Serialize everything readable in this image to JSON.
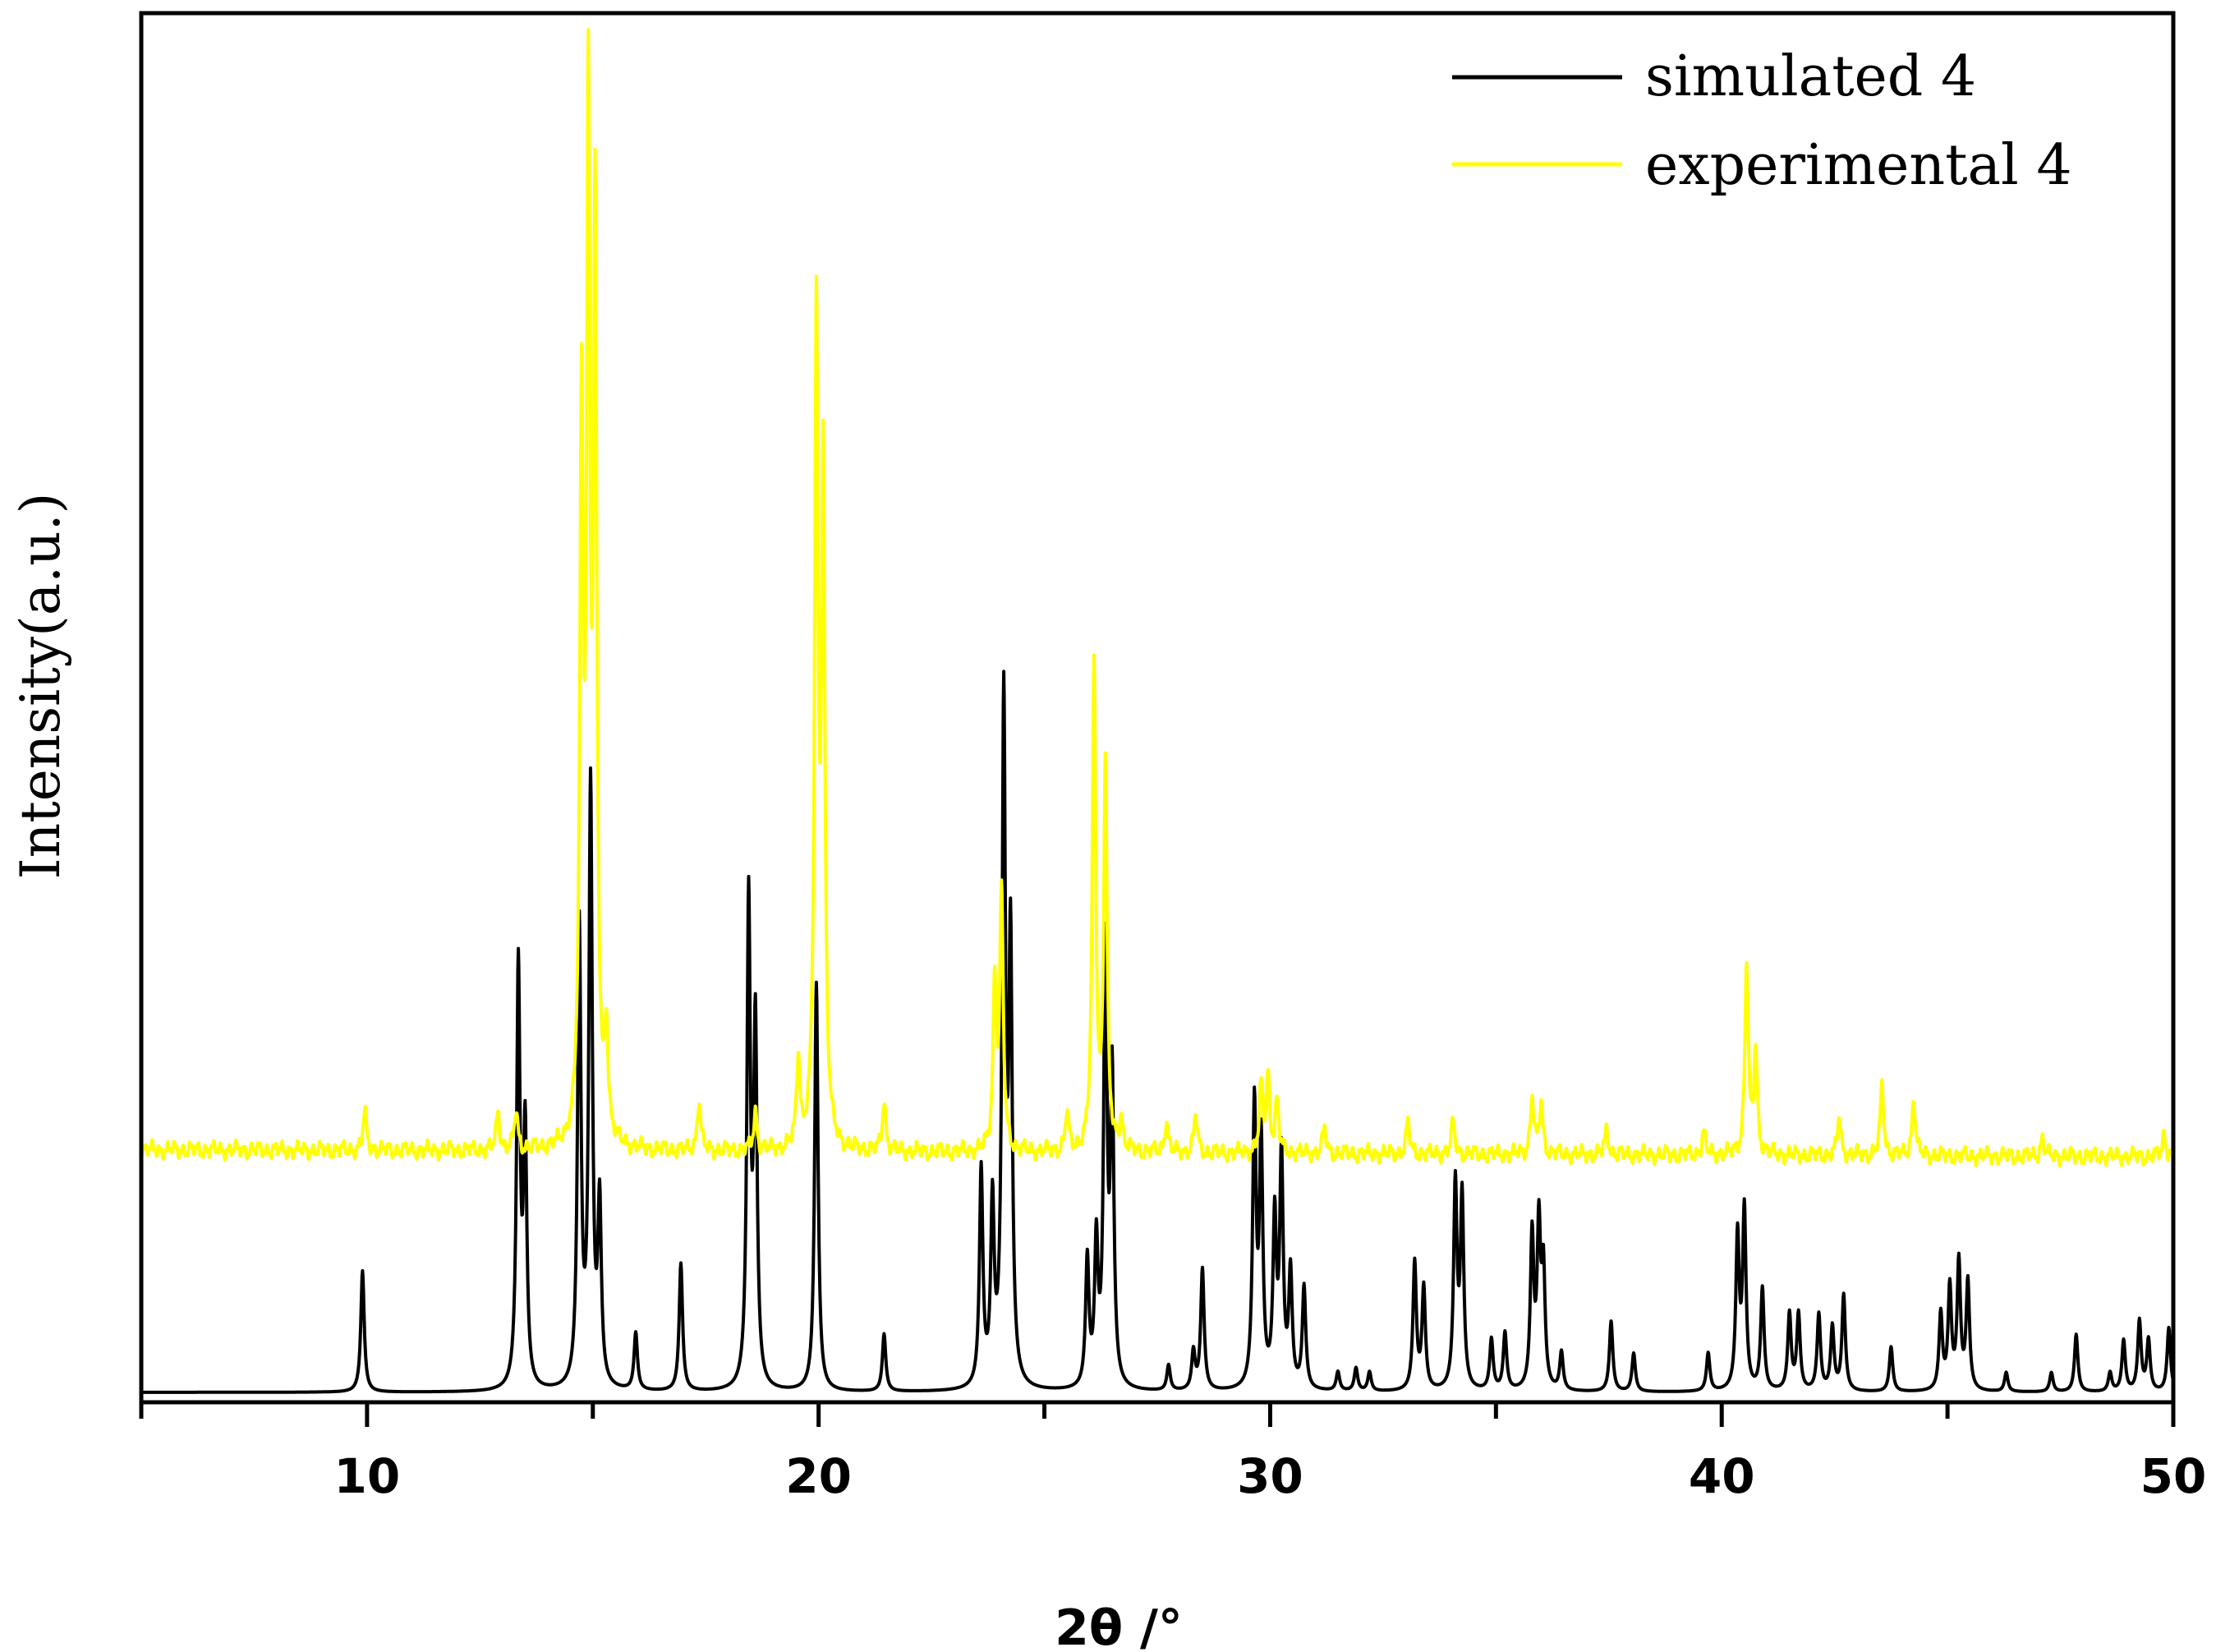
{
  "chart_data": {
    "type": "line",
    "xlabel": "2θ /°",
    "ylabel": "Intensity(a.u.)",
    "xlim": [
      5,
      50
    ],
    "xticks": [
      10,
      20,
      30,
      40,
      50
    ],
    "minor_xtick_step": 5,
    "ylim": [
      0,
      100
    ],
    "grid": false,
    "legend_position": "top-right",
    "series": [
      {
        "name": "simulated 4",
        "color": "#000000",
        "baseline": 0,
        "peaks": [
          [
            9.9,
            9.5
          ],
          [
            13.35,
            33
          ],
          [
            13.5,
            20
          ],
          [
            14.7,
            36
          ],
          [
            14.95,
            47
          ],
          [
            15.15,
            14
          ],
          [
            15.95,
            4.5
          ],
          [
            16.95,
            10
          ],
          [
            18.45,
            38
          ],
          [
            18.6,
            28
          ],
          [
            19.95,
            32
          ],
          [
            21.45,
            4.5
          ],
          [
            23.6,
            17
          ],
          [
            23.85,
            14
          ],
          [
            24.1,
            53
          ],
          [
            24.25,
            34
          ],
          [
            25.95,
            10
          ],
          [
            26.15,
            11
          ],
          [
            26.35,
            34
          ],
          [
            26.5,
            24
          ],
          [
            27.75,
            2
          ],
          [
            28.3,
            3
          ],
          [
            28.5,
            9.5
          ],
          [
            29.65,
            22
          ],
          [
            29.8,
            19
          ],
          [
            30.1,
            13
          ],
          [
            30.25,
            18
          ],
          [
            30.45,
            9
          ],
          [
            30.75,
            8
          ],
          [
            31.5,
            1.5
          ],
          [
            31.9,
            1.8
          ],
          [
            32.2,
            1.5
          ],
          [
            33.2,
            10
          ],
          [
            33.4,
            8
          ],
          [
            34.1,
            16
          ],
          [
            34.25,
            15
          ],
          [
            34.9,
            4
          ],
          [
            35.2,
            4.5
          ],
          [
            35.8,
            12
          ],
          [
            35.95,
            12.5
          ],
          [
            36.05,
            9
          ],
          [
            36.45,
            3
          ],
          [
            37.55,
            5.5
          ],
          [
            38.05,
            3
          ],
          [
            39.7,
            3
          ],
          [
            40.35,
            12
          ],
          [
            40.5,
            14
          ],
          [
            40.9,
            8
          ],
          [
            41.5,
            6
          ],
          [
            41.7,
            6
          ],
          [
            42.15,
            6
          ],
          [
            42.45,
            5
          ],
          [
            42.7,
            7.5
          ],
          [
            43.75,
            3.5
          ],
          [
            44.85,
            6
          ],
          [
            45.05,
            8
          ],
          [
            45.25,
            10
          ],
          [
            45.45,
            8.5
          ],
          [
            46.3,
            1.5
          ],
          [
            47.3,
            1.5
          ],
          [
            47.85,
            4.5
          ],
          [
            48.6,
            1.5
          ],
          [
            48.9,
            4
          ],
          [
            49.25,
            5.5
          ],
          [
            49.45,
            4
          ],
          [
            49.9,
            5
          ]
        ]
      },
      {
        "name": "experimental 4",
        "color": "#ffff00",
        "baseline": 19,
        "peaks": [
          [
            9.95,
            3
          ],
          [
            12.9,
            3
          ],
          [
            13.3,
            3
          ],
          [
            14.75,
            55
          ],
          [
            14.9,
            77
          ],
          [
            15.05,
            70
          ],
          [
            15.3,
            8
          ],
          [
            17.35,
            4
          ],
          [
            18.6,
            3
          ],
          [
            19.55,
            7
          ],
          [
            19.95,
            64
          ],
          [
            20.1,
            52
          ],
          [
            21.45,
            4
          ],
          [
            23.9,
            13
          ],
          [
            24.05,
            20
          ],
          [
            25.5,
            3
          ],
          [
            26.1,
            38
          ],
          [
            26.35,
            30
          ],
          [
            26.7,
            2.5
          ],
          [
            27.7,
            2.5
          ],
          [
            28.35,
            3
          ],
          [
            29.8,
            5
          ],
          [
            29.95,
            6
          ],
          [
            30.15,
            4
          ],
          [
            31.2,
            2
          ],
          [
            33.05,
            2.5
          ],
          [
            34.05,
            2.5
          ],
          [
            35.8,
            4.5
          ],
          [
            36.0,
            4
          ],
          [
            37.45,
            2
          ],
          [
            39.6,
            1.8
          ],
          [
            40.55,
            15
          ],
          [
            40.75,
            8
          ],
          [
            42.6,
            3
          ],
          [
            43.55,
            5.5
          ],
          [
            44.25,
            4.5
          ],
          [
            47.1,
            1.5
          ],
          [
            49.8,
            1.8
          ]
        ]
      }
    ]
  }
}
